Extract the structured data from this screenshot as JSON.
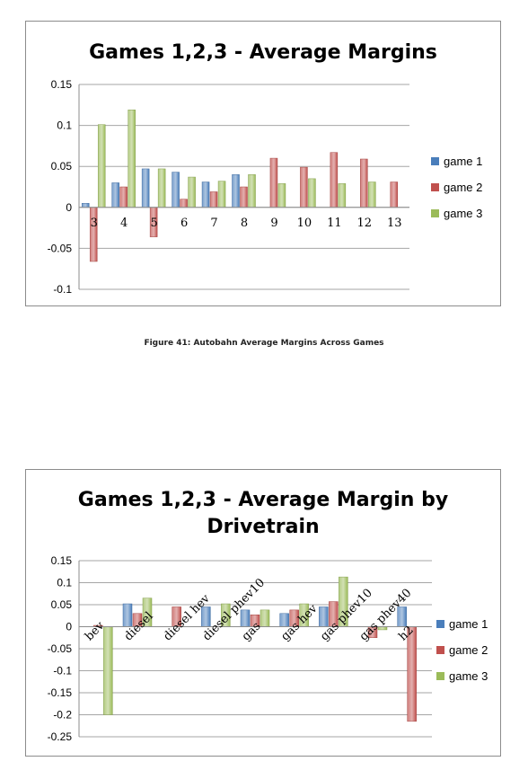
{
  "colors": {
    "game1": "#4a7ebb",
    "game2": "#c0504d",
    "game3": "#9bbb59"
  },
  "caption": "Figure 41: Autobahn Average Margins Across Games",
  "chart_data": [
    {
      "type": "bar",
      "title": "Games 1,2,3 - Average Margins",
      "categories": [
        "3",
        "4",
        "5",
        "6",
        "7",
        "8",
        "9",
        "10",
        "11",
        "12",
        "13"
      ],
      "series": [
        {
          "name": "game 1",
          "values": [
            0.005,
            0.03,
            0.047,
            0.043,
            0.031,
            0.04,
            0,
            0,
            0,
            0,
            0
          ]
        },
        {
          "name": "game 2",
          "values": [
            -0.066,
            0.025,
            -0.036,
            0.01,
            0.019,
            0.025,
            0.06,
            0.049,
            0.067,
            0.059,
            0.031
          ]
        },
        {
          "name": "game 3",
          "values": [
            0.101,
            0.119,
            0.047,
            0.037,
            0.032,
            0.04,
            0.029,
            0.035,
            0.029,
            0.031,
            0
          ]
        }
      ],
      "yticks": [
        "0.15",
        "0.1",
        "0.05",
        "0",
        "-0.05",
        "-0.1"
      ],
      "ylim": [
        -0.1,
        0.15
      ],
      "grid": true,
      "legend": "right"
    },
    {
      "type": "bar",
      "title": "Games 1,2,3 - Average Margin by Drivetrain",
      "title_lines": [
        "Games 1,2,3 - Average Margin by",
        "Drivetrain"
      ],
      "categories": [
        "bev",
        "diesel",
        "diesel hev",
        "diesel phev10",
        "gas",
        "gas hev",
        "gas phev10",
        "gas phev40",
        "h2"
      ],
      "series": [
        {
          "name": "game 1",
          "values": [
            0,
            0.052,
            0,
            0.045,
            0.038,
            0.03,
            0.045,
            0,
            0.045
          ]
        },
        {
          "name": "game 2",
          "values": [
            0.003,
            0.03,
            0.045,
            0,
            0.027,
            0.038,
            0.057,
            -0.025,
            -0.215
          ]
        },
        {
          "name": "game 3",
          "values": [
            -0.2,
            0.065,
            0,
            0.052,
            0.038,
            0.052,
            0.113,
            -0.007,
            0
          ]
        }
      ],
      "yticks": [
        "0.15",
        "0.1",
        "0.05",
        "0",
        "-0.05",
        "-0.1",
        "-0.15",
        "-0.2",
        "-0.25"
      ],
      "ylim": [
        -0.25,
        0.15
      ],
      "grid": true,
      "legend": "right"
    }
  ]
}
